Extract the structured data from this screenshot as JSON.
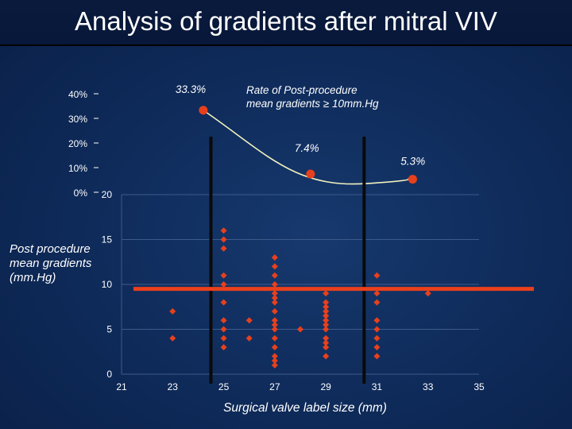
{
  "title": "Analysis of gradients after mitral VIV",
  "colors": {
    "marker": "#e8401c",
    "curve": "#f2f2c0",
    "divider": "#0a0a0a",
    "threshold": "#e8401c"
  },
  "chart_data": [
    {
      "type": "line",
      "name": "rate-chart",
      "title": "Rate of Post-procedure mean gradients ≥ 10mm.Hg",
      "title_line1": "Rate of Post-procedure",
      "title_line2": "mean gradients ≥ 10mm.Hg",
      "ylim": [
        0,
        40
      ],
      "y_tick_labels": [
        "40%",
        "30%",
        "20%",
        "10%",
        "0%"
      ],
      "y_tick_values": [
        40,
        30,
        20,
        10,
        0
      ],
      "x": [
        24.2,
        28.4,
        32.4
      ],
      "values": [
        33.3,
        7.4,
        5.3
      ],
      "data_labels": [
        "33.3%",
        "7.4%",
        "5.3%"
      ]
    },
    {
      "type": "scatter",
      "name": "gradient-chart",
      "xlabel": "Surgical valve label size  (mm)",
      "ylabel_lines": [
        "Post procedure",
        "mean gradients",
        "(mm.Hg)"
      ],
      "xlim": [
        21,
        35
      ],
      "ylim": [
        0,
        20
      ],
      "x_ticks": [
        21,
        23,
        25,
        27,
        29,
        31,
        33,
        35
      ],
      "x_tick_labels": [
        "21",
        "23",
        "25",
        "27",
        "29",
        "31",
        "33",
        "35"
      ],
      "y_ticks": [
        0,
        5,
        10,
        15,
        20
      ],
      "y_tick_labels": [
        "0",
        "5",
        "10",
        "15",
        "20"
      ],
      "threshold": 9.5,
      "dividers_x": [
        24.5,
        30.5
      ],
      "points": [
        [
          23,
          7
        ],
        [
          23,
          4
        ],
        [
          25,
          16
        ],
        [
          25,
          15
        ],
        [
          25,
          14
        ],
        [
          25,
          11
        ],
        [
          25,
          10
        ],
        [
          25,
          8
        ],
        [
          25,
          6
        ],
        [
          25,
          5
        ],
        [
          25,
          4
        ],
        [
          25,
          3
        ],
        [
          26,
          6
        ],
        [
          26,
          4
        ],
        [
          27,
          13
        ],
        [
          27,
          12
        ],
        [
          27,
          11
        ],
        [
          27,
          10
        ],
        [
          27,
          9.5
        ],
        [
          27,
          9
        ],
        [
          27,
          8.5
        ],
        [
          27,
          8
        ],
        [
          27,
          7
        ],
        [
          27,
          6
        ],
        [
          27,
          5.5
        ],
        [
          27,
          5
        ],
        [
          27,
          4
        ],
        [
          27,
          3
        ],
        [
          27,
          2
        ],
        [
          27,
          1.5
        ],
        [
          27,
          1
        ],
        [
          28,
          5
        ],
        [
          29,
          9
        ],
        [
          29,
          8
        ],
        [
          29,
          7.5
        ],
        [
          29,
          7
        ],
        [
          29,
          6.5
        ],
        [
          29,
          6
        ],
        [
          29,
          5.5
        ],
        [
          29,
          5
        ],
        [
          29,
          4
        ],
        [
          29,
          3.5
        ],
        [
          29,
          3
        ],
        [
          29,
          2
        ],
        [
          31,
          11
        ],
        [
          31,
          9
        ],
        [
          31,
          8
        ],
        [
          31,
          6
        ],
        [
          31,
          5
        ],
        [
          31,
          4
        ],
        [
          31,
          3
        ],
        [
          31,
          2
        ],
        [
          33,
          9
        ]
      ]
    }
  ]
}
